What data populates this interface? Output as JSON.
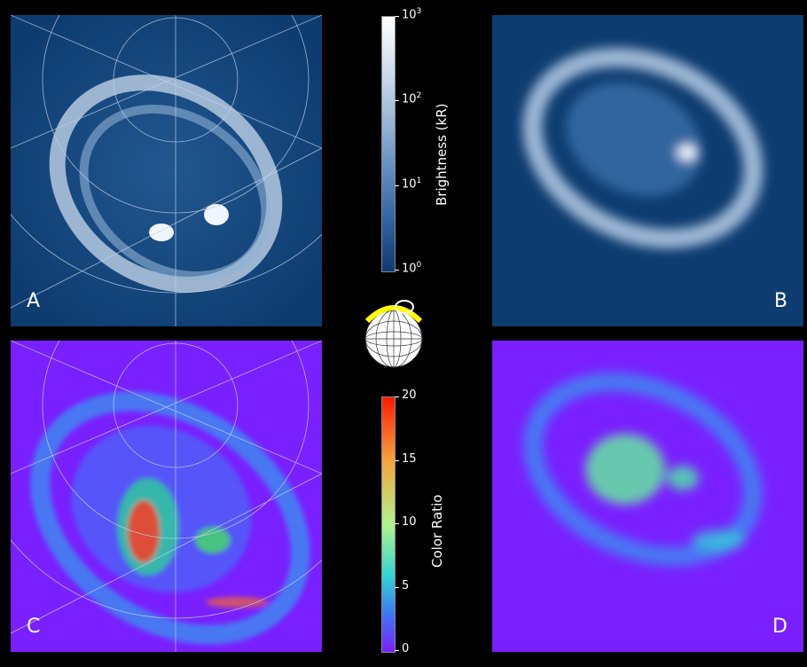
{
  "panels": {
    "a": {
      "label": "A"
    },
    "b": {
      "label": "B"
    },
    "c": {
      "label": "C"
    },
    "d": {
      "label": "D"
    }
  },
  "colorbar_brightness": {
    "title": "Brightness (kR)",
    "ticks": [
      {
        "base": "10",
        "exp": "3"
      },
      {
        "base": "10",
        "exp": "2"
      },
      {
        "base": "10",
        "exp": "1"
      },
      {
        "base": "10",
        "exp": "0"
      }
    ],
    "scale": "log",
    "range": [
      1,
      1000
    ],
    "colors": [
      "#ffffff",
      "#9fbad8",
      "#3a72ad",
      "#0d3c70"
    ]
  },
  "colorbar_ratio": {
    "title": "Color Ratio",
    "ticks": [
      "20",
      "15",
      "10",
      "5",
      "0"
    ],
    "range": [
      0,
      20
    ],
    "colors": [
      "#ff1a00",
      "#f7a43c",
      "#aef48c",
      "#33d3d4",
      "#3c78f5",
      "#7a1fff"
    ]
  },
  "colors": {
    "background": "#000000",
    "brightness_bg": "#0d3c70",
    "ratio_bg": "#7a1fff",
    "grid": "#c8d2e6",
    "globe_highlight": "#ffff00"
  }
}
